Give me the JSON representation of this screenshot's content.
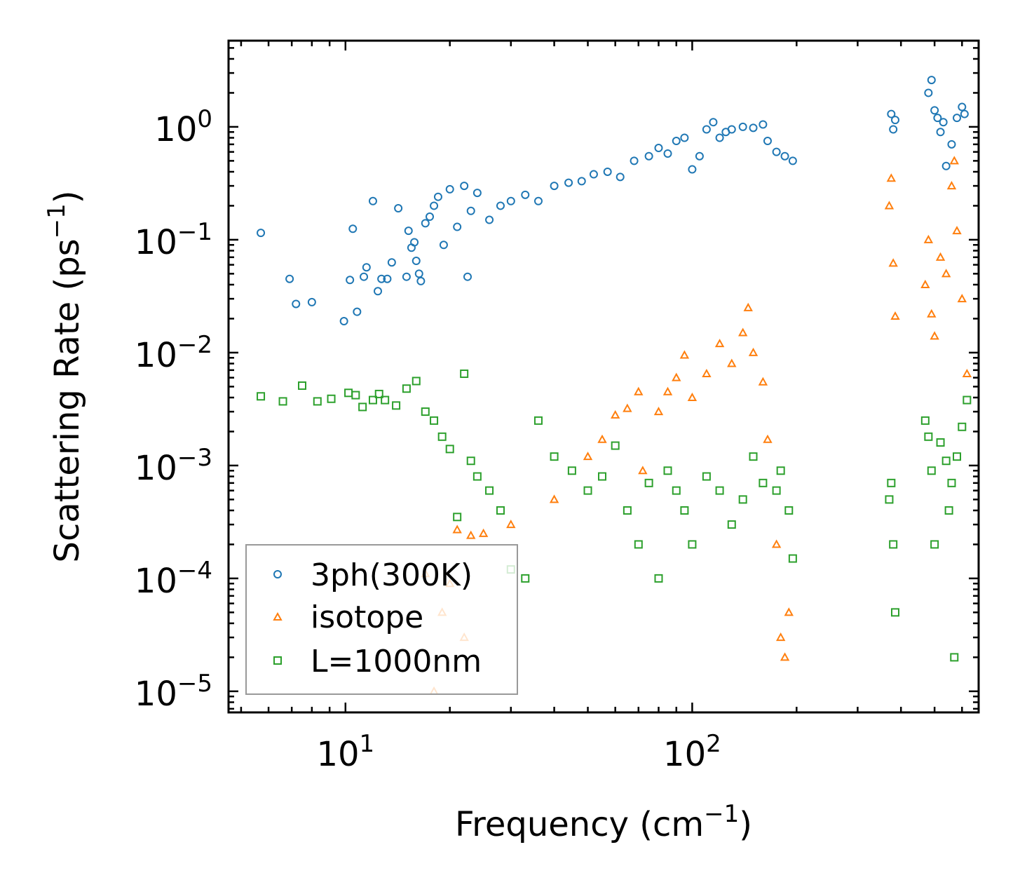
{
  "chart_data": {
    "type": "scatter",
    "title": "",
    "xlabel": {
      "base": "Frequency (cm",
      "sup": "−1",
      "end": ")"
    },
    "ylabel": {
      "base": "Scattering Rate (ps",
      "sup": "−1",
      "end": ")"
    },
    "xscale": "log",
    "yscale": "log",
    "xlim": [
      4.6,
      670
    ],
    "ylim": [
      6.5e-06,
      5.8
    ],
    "x_ticks": [
      {
        "value": 10,
        "base": "10",
        "exp": "1"
      },
      {
        "value": 100,
        "base": "10",
        "exp": "2"
      }
    ],
    "y_ticks": [
      {
        "value": 1,
        "base": "10",
        "exp": "0"
      },
      {
        "value": 0.1,
        "base": "10",
        "exp": "−1"
      },
      {
        "value": 0.01,
        "base": "10",
        "exp": "−2"
      },
      {
        "value": 0.001,
        "base": "10",
        "exp": "−3"
      },
      {
        "value": 0.0001,
        "base": "10",
        "exp": "−4"
      },
      {
        "value": 1e-05,
        "base": "10",
        "exp": "−5"
      }
    ],
    "legend_position": "lower-left",
    "series": [
      {
        "name": "3ph(300K)",
        "marker": "circle",
        "color": "#1f77b4",
        "points": [
          [
            5.7,
            0.115
          ],
          [
            6.9,
            0.045
          ],
          [
            7.2,
            0.027
          ],
          [
            8,
            0.028
          ],
          [
            9.9,
            0.019
          ],
          [
            10.3,
            0.044
          ],
          [
            10.5,
            0.125
          ],
          [
            10.8,
            0.023
          ],
          [
            11.3,
            0.047
          ],
          [
            11.5,
            0.057
          ],
          [
            12,
            0.22
          ],
          [
            12.4,
            0.035
          ],
          [
            12.7,
            0.045
          ],
          [
            13.2,
            0.045
          ],
          [
            13.6,
            0.063
          ],
          [
            14.2,
            0.19
          ],
          [
            15,
            0.047
          ],
          [
            15.2,
            0.12
          ],
          [
            15.5,
            0.085
          ],
          [
            15.8,
            0.095
          ],
          [
            16,
            0.065
          ],
          [
            16.3,
            0.05
          ],
          [
            16.5,
            0.043
          ],
          [
            17,
            0.14
          ],
          [
            17.5,
            0.16
          ],
          [
            18,
            0.2
          ],
          [
            18.5,
            0.24
          ],
          [
            19.2,
            0.09
          ],
          [
            20,
            0.28
          ],
          [
            21,
            0.13
          ],
          [
            22,
            0.3
          ],
          [
            22.5,
            0.047
          ],
          [
            23,
            0.18
          ],
          [
            24,
            0.26
          ],
          [
            26,
            0.15
          ],
          [
            28,
            0.2
          ],
          [
            30,
            0.22
          ],
          [
            33,
            0.25
          ],
          [
            36,
            0.22
          ],
          [
            40,
            0.3
          ],
          [
            44,
            0.32
          ],
          [
            48,
            0.33
          ],
          [
            52,
            0.38
          ],
          [
            57,
            0.4
          ],
          [
            62,
            0.36
          ],
          [
            68,
            0.5
          ],
          [
            75,
            0.55
          ],
          [
            80,
            0.65
          ],
          [
            85,
            0.58
          ],
          [
            90,
            0.75
          ],
          [
            95,
            0.8
          ],
          [
            100,
            0.42
          ],
          [
            105,
            0.55
          ],
          [
            110,
            0.95
          ],
          [
            115,
            1.1
          ],
          [
            120,
            0.8
          ],
          [
            125,
            0.9
          ],
          [
            130,
            0.95
          ],
          [
            140,
            1.0
          ],
          [
            150,
            0.98
          ],
          [
            160,
            1.05
          ],
          [
            165,
            0.75
          ],
          [
            175,
            0.6
          ],
          [
            185,
            0.55
          ],
          [
            195,
            0.5
          ],
          [
            375,
            1.3
          ],
          [
            380,
            0.95
          ],
          [
            385,
            1.15
          ],
          [
            480,
            2.0
          ],
          [
            490,
            2.6
          ],
          [
            500,
            1.4
          ],
          [
            510,
            1.2
          ],
          [
            520,
            0.9
          ],
          [
            530,
            1.1
          ],
          [
            540,
            0.45
          ],
          [
            560,
            0.7
          ],
          [
            580,
            1.2
          ],
          [
            600,
            1.5
          ],
          [
            610,
            1.3
          ]
        ]
      },
      {
        "name": "isotope",
        "marker": "triangle",
        "color": "#ff7f0e",
        "points": [
          [
            17,
            0.00011
          ],
          [
            18,
            1e-05
          ],
          [
            19,
            5e-05
          ],
          [
            20,
            9e-05
          ],
          [
            21,
            0.00027
          ],
          [
            22,
            3e-05
          ],
          [
            23,
            0.00024
          ],
          [
            25,
            0.00025
          ],
          [
            30,
            0.0003
          ],
          [
            40,
            0.0005
          ],
          [
            50,
            0.0012
          ],
          [
            55,
            0.0017
          ],
          [
            60,
            0.0028
          ],
          [
            65,
            0.0032
          ],
          [
            70,
            0.0045
          ],
          [
            72,
            0.0009
          ],
          [
            80,
            0.003
          ],
          [
            85,
            0.0045
          ],
          [
            90,
            0.006
          ],
          [
            95,
            0.0095
          ],
          [
            100,
            0.004
          ],
          [
            110,
            0.0065
          ],
          [
            120,
            0.012
          ],
          [
            130,
            0.008
          ],
          [
            140,
            0.015
          ],
          [
            145,
            0.025
          ],
          [
            150,
            0.01
          ],
          [
            160,
            0.0055
          ],
          [
            165,
            0.0017
          ],
          [
            175,
            0.0002
          ],
          [
            180,
            3e-05
          ],
          [
            185,
            2e-05
          ],
          [
            190,
            5e-05
          ],
          [
            370,
            0.2
          ],
          [
            375,
            0.35
          ],
          [
            380,
            0.062
          ],
          [
            385,
            0.021
          ],
          [
            470,
            0.04
          ],
          [
            480,
            0.1
          ],
          [
            490,
            0.022
          ],
          [
            500,
            0.014
          ],
          [
            520,
            0.07
          ],
          [
            540,
            0.05
          ],
          [
            560,
            0.3
          ],
          [
            570,
            0.5
          ],
          [
            580,
            0.12
          ],
          [
            600,
            0.03
          ],
          [
            620,
            0.0065
          ]
        ]
      },
      {
        "name": "L=1000nm",
        "marker": "square",
        "color": "#2ca02c",
        "points": [
          [
            5.7,
            0.0041
          ],
          [
            6.6,
            0.0037
          ],
          [
            7.5,
            0.0051
          ],
          [
            8.3,
            0.0037
          ],
          [
            9.1,
            0.0039
          ],
          [
            10.2,
            0.0044
          ],
          [
            10.7,
            0.0042
          ],
          [
            11.2,
            0.0033
          ],
          [
            12,
            0.0038
          ],
          [
            12.5,
            0.0043
          ],
          [
            13,
            0.0038
          ],
          [
            14,
            0.0034
          ],
          [
            15,
            0.0048
          ],
          [
            16,
            0.0056
          ],
          [
            17,
            0.003
          ],
          [
            18,
            0.0025
          ],
          [
            19,
            0.0018
          ],
          [
            20,
            0.0014
          ],
          [
            21,
            0.00035
          ],
          [
            22,
            0.0065
          ],
          [
            23,
            0.0011
          ],
          [
            24,
            0.0008
          ],
          [
            26,
            0.0006
          ],
          [
            28,
            0.0004
          ],
          [
            30,
            0.00012
          ],
          [
            33,
            0.0001
          ],
          [
            36,
            0.0025
          ],
          [
            40,
            0.0012
          ],
          [
            45,
            0.0009
          ],
          [
            50,
            0.0006
          ],
          [
            55,
            0.0008
          ],
          [
            60,
            0.0015
          ],
          [
            65,
            0.0004
          ],
          [
            70,
            0.0002
          ],
          [
            75,
            0.0007
          ],
          [
            80,
            0.0001
          ],
          [
            85,
            0.0009
          ],
          [
            90,
            0.0006
          ],
          [
            95,
            0.0004
          ],
          [
            100,
            0.0002
          ],
          [
            110,
            0.0008
          ],
          [
            120,
            0.0006
          ],
          [
            130,
            0.0003
          ],
          [
            140,
            0.0005
          ],
          [
            150,
            0.0012
          ],
          [
            160,
            0.0007
          ],
          [
            175,
            0.0006
          ],
          [
            180,
            0.0009
          ],
          [
            190,
            0.0004
          ],
          [
            195,
            0.00015
          ],
          [
            370,
            0.0005
          ],
          [
            375,
            0.0007
          ],
          [
            380,
            0.0002
          ],
          [
            385,
            5e-05
          ],
          [
            470,
            0.0025
          ],
          [
            480,
            0.0018
          ],
          [
            490,
            0.0009
          ],
          [
            500,
            0.0002
          ],
          [
            520,
            0.0016
          ],
          [
            540,
            0.0011
          ],
          [
            550,
            0.0004
          ],
          [
            560,
            0.0007
          ],
          [
            570,
            2e-05
          ],
          [
            580,
            0.0012
          ],
          [
            600,
            0.0022
          ],
          [
            620,
            0.0038
          ]
        ]
      }
    ]
  }
}
